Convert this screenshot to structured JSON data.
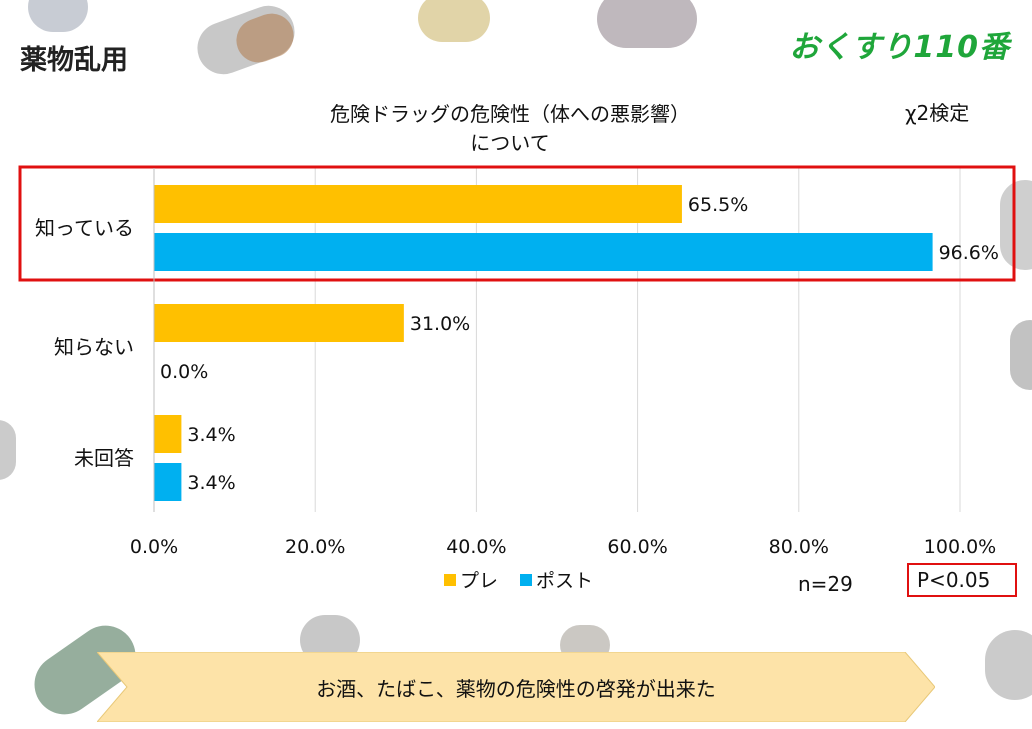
{
  "header": {
    "page_title": "薬物乱用",
    "logo_text": "おくすり110番"
  },
  "chart_data": {
    "type": "bar",
    "orientation": "horizontal",
    "title_lines": [
      "危険ドラッグの危険性（体への悪影響）",
      "について"
    ],
    "categories": [
      "知っている",
      "知らない",
      "未回答"
    ],
    "series": [
      {
        "name": "プレ",
        "color": "#FFC000",
        "values": [
          65.5,
          31.0,
          3.4
        ]
      },
      {
        "name": "ポスト",
        "color": "#00B0F0",
        "values": [
          96.6,
          0.0,
          3.4
        ]
      }
    ],
    "xlim": [
      0,
      100
    ],
    "ticks": [
      "0.0%",
      "20.0%",
      "40.0%",
      "60.0%",
      "80.0%",
      "100.0%"
    ],
    "value_labels": [
      [
        "65.5%",
        "31.0%",
        "3.4%"
      ],
      [
        "96.6%",
        "0.0%",
        "3.4%"
      ]
    ],
    "grid": true,
    "legend_position": "bottom",
    "highlight_category": "知っている"
  },
  "annotations": {
    "test_label": "χ2検定",
    "n_label": "n=29",
    "p_label": "P<0.05"
  },
  "banner": {
    "text": "お酒、たばこ、薬物の危険性の啓発が出来た"
  },
  "colors": {
    "highlight_border": "#E01010",
    "banner_fill": "#FDE3A8",
    "logo": "#1FA63A"
  }
}
